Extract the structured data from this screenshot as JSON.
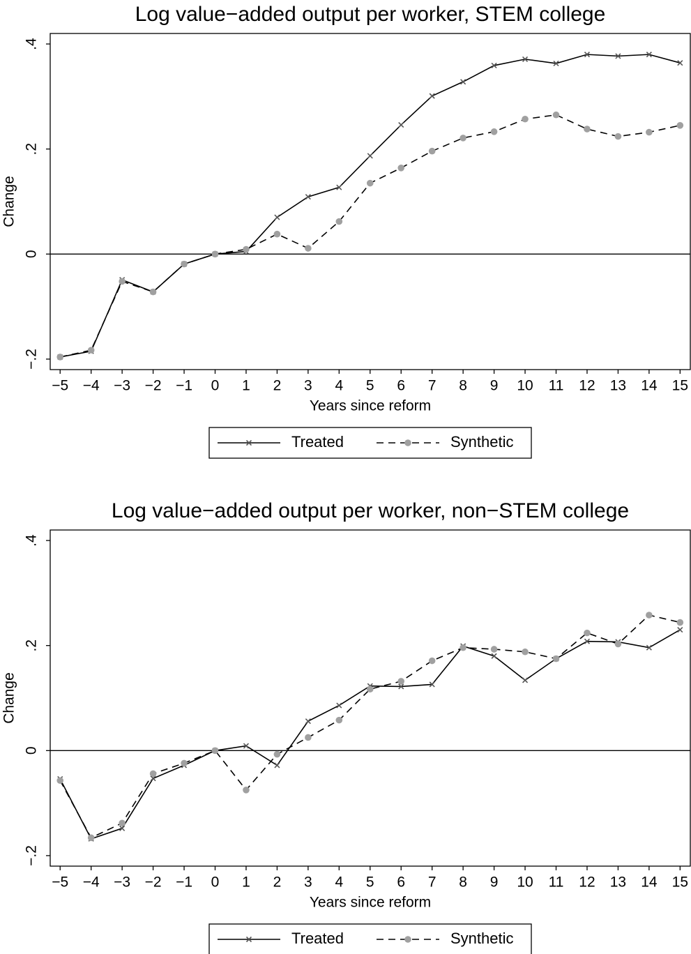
{
  "chart_data": [
    {
      "type": "line",
      "title": "Log value−added output per worker, STEM college",
      "x_label": "Years since reform",
      "y_label": "Change",
      "x": [
        -5,
        -4,
        -3,
        -2,
        -1,
        0,
        1,
        2,
        3,
        4,
        5,
        6,
        7,
        8,
        9,
        10,
        11,
        12,
        13,
        14,
        15
      ],
      "series": [
        {
          "name": "Treated",
          "color": "#000000",
          "marker": "x",
          "marker_color": "#555555",
          "dash": false,
          "values": [
            -0.196,
            -0.185,
            -0.049,
            -0.072,
            -0.019,
            0,
            0.005,
            0.07,
            0.109,
            0.127,
            0.187,
            0.246,
            0.301,
            0.328,
            0.359,
            0.371,
            0.363,
            0.38,
            0.377,
            0.38,
            0.364
          ]
        },
        {
          "name": "Synthetic",
          "color": "#000000",
          "marker": "circle",
          "marker_color": "#a0a0a0",
          "dash": true,
          "values": [
            -0.196,
            -0.183,
            -0.052,
            -0.072,
            -0.019,
            0,
            0.009,
            0.038,
            0.011,
            0.062,
            0.135,
            0.164,
            0.196,
            0.221,
            0.233,
            0.257,
            0.265,
            0.238,
            0.224,
            0.232,
            0.245
          ]
        }
      ],
      "xlim": [
        -5.32,
        15.33
      ],
      "ylim": [
        -0.22,
        0.42
      ],
      "xticks": [
        {
          "value": -5,
          "label": "−5"
        },
        {
          "value": -4,
          "label": "−4"
        },
        {
          "value": -3,
          "label": "−3"
        },
        {
          "value": -2,
          "label": "−2"
        },
        {
          "value": -1,
          "label": "−1"
        },
        0,
        1,
        2,
        3,
        4,
        5,
        6,
        7,
        8,
        9,
        10,
        11,
        12,
        13,
        14,
        15
      ],
      "yticks": [
        {
          "value": -0.2,
          "label": "−.2"
        },
        0,
        {
          "value": 0.2,
          "label": ".2"
        },
        {
          "value": 0.4,
          "label": ".4"
        }
      ],
      "hline": 0,
      "legend": "bottom"
    },
    {
      "type": "line",
      "title": "Log value−added output per worker, non−STEM college",
      "x_label": "Years since reform",
      "y_label": "Change",
      "x": [
        -5,
        -4,
        -3,
        -2,
        -1,
        0,
        1,
        2,
        3,
        4,
        5,
        6,
        7,
        8,
        9,
        10,
        11,
        12,
        13,
        14,
        15
      ],
      "series": [
        {
          "name": "Treated",
          "color": "#000000",
          "marker": "x",
          "marker_color": "#555555",
          "dash": false,
          "values": [
            -0.054,
            -0.168,
            -0.148,
            -0.053,
            -0.028,
            0,
            0.009,
            -0.028,
            0.056,
            0.086,
            0.123,
            0.122,
            0.126,
            0.199,
            0.18,
            0.134,
            0.175,
            0.208,
            0.207,
            0.196,
            0.23
          ]
        },
        {
          "name": "Synthetic",
          "color": "#000000",
          "marker": "circle",
          "marker_color": "#a0a0a0",
          "dash": true,
          "values": [
            -0.057,
            -0.166,
            -0.138,
            -0.044,
            -0.024,
            0,
            -0.075,
            -0.007,
            0.025,
            0.058,
            0.117,
            0.132,
            0.171,
            0.196,
            0.193,
            0.188,
            0.175,
            0.224,
            0.203,
            0.258,
            0.244
          ]
        }
      ],
      "xlim": [
        -5.32,
        15.33
      ],
      "ylim": [
        -0.22,
        0.42
      ],
      "xticks": [
        {
          "value": -5,
          "label": "−5"
        },
        {
          "value": -4,
          "label": "−4"
        },
        {
          "value": -3,
          "label": "−3"
        },
        {
          "value": -2,
          "label": "−2"
        },
        {
          "value": -1,
          "label": "−1"
        },
        0,
        1,
        2,
        3,
        4,
        5,
        6,
        7,
        8,
        9,
        10,
        11,
        12,
        13,
        14,
        15
      ],
      "yticks": [
        {
          "value": -0.2,
          "label": "−.2"
        },
        0,
        {
          "value": 0.2,
          "label": ".2"
        },
        {
          "value": 0.4,
          "label": ".4"
        }
      ],
      "hline": 0,
      "legend": "bottom"
    }
  ]
}
